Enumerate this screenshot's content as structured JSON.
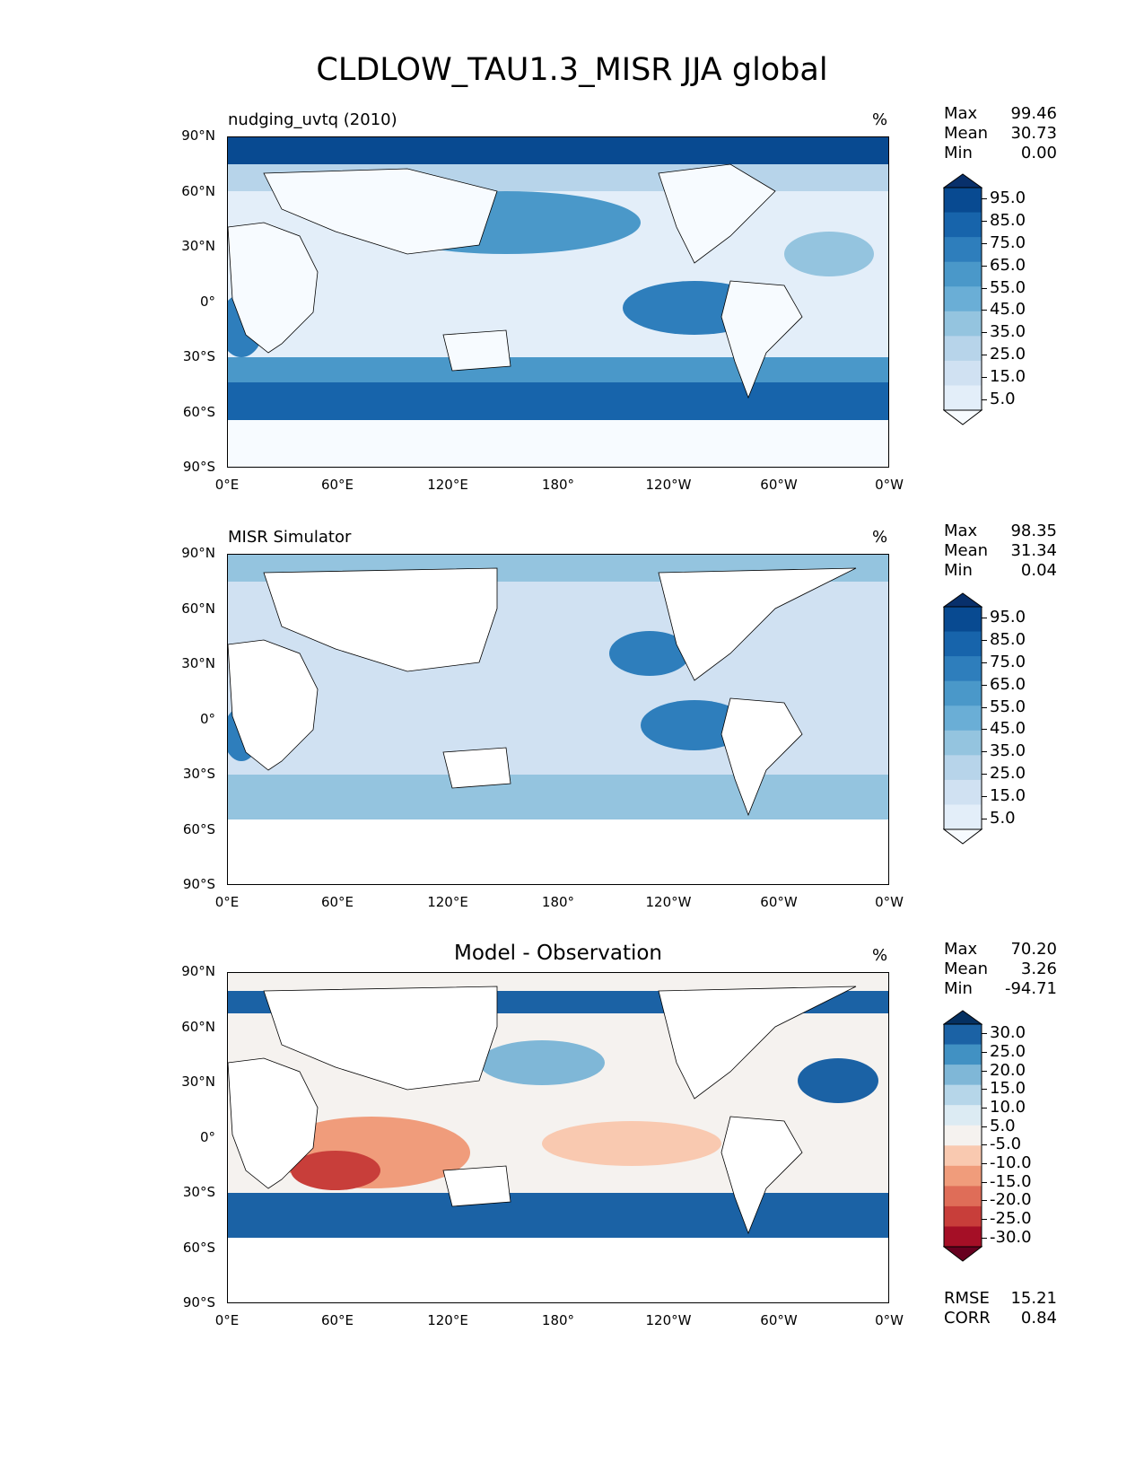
{
  "title": "CLDLOW_TAU1.3_MISR JJA global",
  "axes": {
    "lat_ticks": [
      "90°N",
      "60°N",
      "30°N",
      "0°",
      "30°S",
      "60°S",
      "90°S"
    ],
    "lon_ticks": [
      "0°E",
      "60°E",
      "120°E",
      "180°",
      "120°W",
      "60°W",
      "0°W"
    ]
  },
  "colors": {
    "blues": [
      "#f7fbff",
      "#e3eef9",
      "#d0e1f2",
      "#b7d4ea",
      "#94c4df",
      "#6aaed6",
      "#4a98c9",
      "#2e7ebc",
      "#1764ab",
      "#084a91",
      "#08306b"
    ],
    "diff": [
      "#67001f",
      "#a50f26",
      "#c83e3a",
      "#df6d58",
      "#f09c7b",
      "#f9c9b0",
      "#f5f2ef",
      "#dcebf3",
      "#b6d6e9",
      "#7fb7d7",
      "#4191c3",
      "#1b62a5",
      "#053061"
    ],
    "land": "#ffffff",
    "coast": "#000000"
  },
  "panels": [
    {
      "id": "model",
      "title_left": "nudging_uvtq (2010)",
      "title_center": "",
      "units": "%",
      "stats": {
        "max_label": "Max",
        "max": "99.46",
        "mean_label": "Mean",
        "mean": "30.73",
        "min_label": "Min",
        "min": "0.00"
      },
      "colorbar": {
        "labels": [
          "95.0",
          "85.0",
          "75.0",
          "65.0",
          "55.0",
          "45.0",
          "35.0",
          "25.0",
          "15.0",
          "5.0"
        ]
      }
    },
    {
      "id": "obs",
      "title_left": "MISR Simulator",
      "title_center": "",
      "units": "%",
      "stats": {
        "max_label": "Max",
        "max": "98.35",
        "mean_label": "Mean",
        "mean": "31.34",
        "min_label": "Min",
        "min": "0.04"
      },
      "colorbar": {
        "labels": [
          "95.0",
          "85.0",
          "75.0",
          "65.0",
          "55.0",
          "45.0",
          "35.0",
          "25.0",
          "15.0",
          "5.0"
        ]
      }
    },
    {
      "id": "diff",
      "title_left": "",
      "title_center": "Model - Observation",
      "units": "%",
      "stats": {
        "max_label": "Max",
        "max": "70.20",
        "mean_label": "Mean",
        "mean": "3.26",
        "min_label": "Min",
        "min": "-94.71"
      },
      "colorbar": {
        "labels": [
          "30.0",
          "25.0",
          "20.0",
          "15.0",
          "10.0",
          "5.0",
          "-5.0",
          "-10.0",
          "-15.0",
          "-20.0",
          "-25.0",
          "-30.0"
        ]
      },
      "metrics": {
        "rmse_label": "RMSE",
        "rmse": "15.21",
        "corr_label": "CORR",
        "corr": "0.84"
      }
    }
  ]
}
